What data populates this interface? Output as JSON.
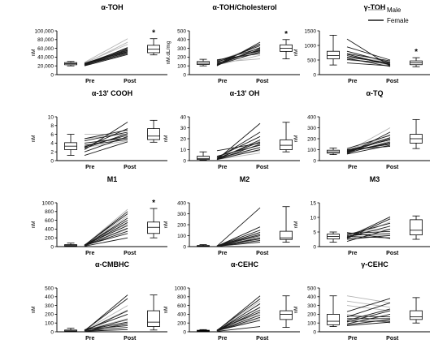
{
  "legend": {
    "entries": [
      {
        "label": "Male",
        "color": "#b5b5b5"
      },
      {
        "label": "Female",
        "color": "#1a1a1a"
      }
    ]
  },
  "colors": {
    "male": "#b5b5b5",
    "female": "#1a1a1a",
    "axis": "#000000"
  },
  "chart_data": [
    {
      "type": "box-and-line",
      "title": "α-TOH",
      "ylabel": "nM",
      "categories": [
        "Pre",
        "Post"
      ],
      "ylim": [
        0,
        100000
      ],
      "yticks": [
        "0",
        "20,000",
        "40,000",
        "60,000",
        "80,000",
        "100,000"
      ],
      "ytick_values": [
        0,
        20000,
        40000,
        60000,
        80000,
        100000
      ],
      "pre_box": {
        "whisker_low": 20000,
        "q1": 22500,
        "median": 25000,
        "q3": 27500,
        "whisker_high": 30000
      },
      "post_box": {
        "whisker_low": 45000,
        "q1": 50000,
        "median": 58000,
        "q3": 67000,
        "whisker_high": 82000
      },
      "significant": true,
      "significance_mark": "*",
      "lines": {
        "male": [
          [
            28000,
            82000
          ],
          [
            25000,
            74000
          ],
          [
            27000,
            69000
          ],
          [
            24000,
            55000
          ]
        ],
        "female": [
          [
            22000,
            62000
          ],
          [
            25000,
            60000
          ],
          [
            23000,
            58000
          ],
          [
            26000,
            55000
          ],
          [
            21000,
            52000
          ],
          [
            24000,
            50000
          ],
          [
            22000,
            48000
          ],
          [
            20000,
            46000
          ],
          [
            23000,
            56000
          ],
          [
            25000,
            53000
          ]
        ]
      }
    },
    {
      "type": "box-and-line",
      "title": "α-TOH/Cholesterol",
      "ylabel": "nM.dL/mg",
      "categories": [
        "Pre",
        "Post"
      ],
      "ylim": [
        0,
        500
      ],
      "yticks": [
        "0",
        "100",
        "200",
        "300",
        "400",
        "500"
      ],
      "ytick_values": [
        0,
        100,
        200,
        300,
        400,
        500
      ],
      "pre_box": {
        "whisker_low": 100,
        "q1": 115,
        "median": 130,
        "q3": 150,
        "whisker_high": 175
      },
      "post_box": {
        "whisker_low": 180,
        "q1": 265,
        "median": 300,
        "q3": 340,
        "whisker_high": 400
      },
      "significant": true,
      "significance_mark": "*",
      "lines": {
        "male": [
          [
            150,
            340
          ],
          [
            130,
            250
          ],
          [
            110,
            220
          ],
          [
            140,
            180
          ]
        ],
        "female": [
          [
            100,
            370
          ],
          [
            120,
            350
          ],
          [
            140,
            330
          ],
          [
            105,
            310
          ],
          [
            160,
            300
          ],
          [
            115,
            290
          ],
          [
            130,
            280
          ],
          [
            150,
            270
          ],
          [
            110,
            260
          ],
          [
            170,
            240
          ]
        ]
      }
    },
    {
      "type": "box-and-line",
      "title": "γ-TOH",
      "ylabel": "nM",
      "categories": [
        "Pre",
        "Post"
      ],
      "ylim": [
        0,
        1500
      ],
      "yticks": [
        "0",
        "500",
        "1000",
        "1500"
      ],
      "ytick_values": [
        0,
        500,
        1000,
        1500
      ],
      "pre_box": {
        "whisker_low": 330,
        "q1": 540,
        "median": 650,
        "q3": 800,
        "whisker_high": 1350
      },
      "post_box": {
        "whisker_low": 270,
        "q1": 340,
        "median": 400,
        "q3": 470,
        "whisker_high": 580
      },
      "significant": true,
      "significance_mark": "*",
      "lines": {
        "male": [
          [
            800,
            400
          ],
          [
            700,
            300
          ],
          [
            600,
            450
          ],
          [
            500,
            380
          ]
        ],
        "female": [
          [
            1220,
            300
          ],
          [
            950,
            500
          ],
          [
            800,
            420
          ],
          [
            720,
            470
          ],
          [
            650,
            350
          ],
          [
            600,
            400
          ],
          [
            560,
            280
          ],
          [
            700,
            330
          ],
          [
            520,
            380
          ],
          [
            400,
            300
          ]
        ]
      }
    },
    {
      "type": "box-and-line",
      "title": "α-13' COOH",
      "ylabel": "nM",
      "categories": [
        "Pre",
        "Post"
      ],
      "ylim": [
        0,
        10
      ],
      "yticks": [
        "0",
        "2",
        "4",
        "6",
        "8",
        "10"
      ],
      "ytick_values": [
        0,
        2,
        4,
        6,
        8,
        10
      ],
      "pre_box": {
        "whisker_low": 1.2,
        "q1": 2.5,
        "median": 3.3,
        "q3": 4.1,
        "whisker_high": 6.0
      },
      "post_box": {
        "whisker_low": 4.2,
        "q1": 4.8,
        "median": 5.6,
        "q3": 7.3,
        "whisker_high": 9.2
      },
      "significant": false,
      "significance_mark": "",
      "lines": {
        "male": [
          [
            6.0,
            6.0
          ],
          [
            4.0,
            5.0
          ],
          [
            3.0,
            4.5
          ],
          [
            5.0,
            6.0
          ]
        ],
        "female": [
          [
            2.5,
            8.8
          ],
          [
            3.0,
            7.3
          ],
          [
            4.5,
            6.5
          ],
          [
            3.2,
            5.8
          ],
          [
            2.0,
            5.5
          ],
          [
            4.0,
            5.2
          ],
          [
            3.5,
            4.8
          ],
          [
            1.2,
            4.3
          ],
          [
            2.8,
            6.2
          ],
          [
            5.0,
            7.0
          ]
        ]
      }
    },
    {
      "type": "box-and-line",
      "title": "α-13' OH",
      "ylabel": "nM",
      "categories": [
        "Pre",
        "Post"
      ],
      "ylim": [
        0,
        40
      ],
      "yticks": [
        "0",
        "10",
        "20",
        "30",
        "40"
      ],
      "ytick_values": [
        0,
        10,
        20,
        30,
        40
      ],
      "pre_box": {
        "whisker_low": 0.5,
        "q1": 1,
        "median": 2,
        "q3": 4,
        "whisker_high": 8
      },
      "post_box": {
        "whisker_low": 8,
        "q1": 10,
        "median": 14,
        "q3": 19,
        "whisker_high": 35
      },
      "significant": false,
      "significance_mark": "",
      "lines": {
        "male": [
          [
            2,
            18
          ],
          [
            1,
            12
          ],
          [
            3,
            9
          ],
          [
            1,
            7
          ]
        ],
        "female": [
          [
            1,
            34
          ],
          [
            2,
            26
          ],
          [
            3,
            22
          ],
          [
            1,
            19
          ],
          [
            2,
            17
          ],
          [
            1,
            15
          ],
          [
            4,
            14
          ],
          [
            9,
            16
          ],
          [
            2,
            12
          ],
          [
            1,
            10
          ]
        ]
      }
    },
    {
      "type": "box-and-line",
      "title": "α-TQ",
      "ylabel": "nM",
      "categories": [
        "Pre",
        "Post"
      ],
      "ylim": [
        0,
        400
      ],
      "yticks": [
        "0",
        "100",
        "200",
        "300",
        "400"
      ],
      "ytick_values": [
        0,
        100,
        200,
        300,
        400
      ],
      "pre_box": {
        "whisker_low": 55,
        "q1": 68,
        "median": 80,
        "q3": 95,
        "whisker_high": 115
      },
      "post_box": {
        "whisker_low": 110,
        "q1": 160,
        "median": 200,
        "q3": 240,
        "whisker_high": 375
      },
      "significant": false,
      "significance_mark": "",
      "lines": {
        "male": [
          [
            80,
            300
          ],
          [
            70,
            240
          ],
          [
            100,
            210
          ],
          [
            65,
            180
          ]
        ],
        "female": [
          [
            60,
            260
          ],
          [
            110,
            230
          ],
          [
            80,
            210
          ],
          [
            75,
            200
          ],
          [
            95,
            190
          ],
          [
            70,
            170
          ],
          [
            85,
            160
          ],
          [
            90,
            150
          ],
          [
            60,
            140
          ],
          [
            100,
            130
          ]
        ]
      }
    },
    {
      "type": "box-and-line",
      "title": "M1",
      "ylabel": "nM",
      "categories": [
        "Pre",
        "Post"
      ],
      "ylim": [
        0,
        1000
      ],
      "yticks": [
        "0",
        "200",
        "400",
        "600",
        "800",
        "1000"
      ],
      "ytick_values": [
        0,
        200,
        400,
        600,
        800,
        1000
      ],
      "pre_box": {
        "whisker_low": 5,
        "q1": 15,
        "median": 25,
        "q3": 45,
        "whisker_high": 80
      },
      "post_box": {
        "whisker_low": 200,
        "q1": 300,
        "median": 440,
        "q3": 560,
        "whisker_high": 870
      },
      "significant": true,
      "significance_mark": "*",
      "lines": {
        "male": [
          [
            30,
            850
          ],
          [
            20,
            700
          ],
          [
            40,
            520
          ],
          [
            15,
            400
          ]
        ],
        "female": [
          [
            25,
            800
          ],
          [
            35,
            750
          ],
          [
            20,
            650
          ],
          [
            30,
            600
          ],
          [
            15,
            550
          ],
          [
            40,
            480
          ],
          [
            25,
            420
          ],
          [
            20,
            350
          ],
          [
            30,
            300
          ],
          [
            10,
            200
          ]
        ]
      }
    },
    {
      "type": "box-and-line",
      "title": "M2",
      "ylabel": "nM",
      "categories": [
        "Pre",
        "Post"
      ],
      "ylim": [
        0,
        400
      ],
      "yticks": [
        "0",
        "100",
        "200",
        "300",
        "400"
      ],
      "ytick_values": [
        0,
        100,
        200,
        300,
        400
      ],
      "pre_box": {
        "whisker_low": 0,
        "q1": 3,
        "median": 6,
        "q3": 10,
        "whisker_high": 18
      },
      "post_box": {
        "whisker_low": 40,
        "q1": 65,
        "median": 80,
        "q3": 140,
        "whisker_high": 365
      },
      "significant": false,
      "significance_mark": "",
      "lines": {
        "male": [
          [
            5,
            150
          ],
          [
            3,
            120
          ],
          [
            8,
            90
          ],
          [
            2,
            60
          ]
        ],
        "female": [
          [
            5,
            355
          ],
          [
            4,
            180
          ],
          [
            6,
            150
          ],
          [
            3,
            130
          ],
          [
            8,
            110
          ],
          [
            5,
            100
          ],
          [
            2,
            80
          ],
          [
            7,
            70
          ],
          [
            4,
            55
          ],
          [
            3,
            40
          ]
        ]
      }
    },
    {
      "type": "box-and-line",
      "title": "M3",
      "ylabel": "nM",
      "categories": [
        "Pre",
        "Post"
      ],
      "ylim": [
        0,
        15
      ],
      "yticks": [
        "0",
        "5",
        "10",
        "15"
      ],
      "ytick_values": [
        0,
        5,
        10,
        15
      ],
      "pre_box": {
        "whisker_low": 1.5,
        "q1": 2.6,
        "median": 3.5,
        "q3": 4.3,
        "whisker_high": 5.0
      },
      "post_box": {
        "whisker_low": 2.5,
        "q1": 4.0,
        "median": 5.6,
        "q3": 9.2,
        "whisker_high": 10.5
      },
      "significant": false,
      "significance_mark": "",
      "lines": {
        "male": [
          [
            3.5,
            10.0
          ],
          [
            2.5,
            8.5
          ],
          [
            4.5,
            6.0
          ],
          [
            3.0,
            4.0
          ]
        ],
        "female": [
          [
            3.0,
            10.2
          ],
          [
            2.8,
            9.5
          ],
          [
            4.0,
            8.0
          ],
          [
            3.2,
            7.0
          ],
          [
            1.8,
            6.0
          ],
          [
            4.5,
            5.2
          ],
          [
            3.8,
            4.5
          ],
          [
            2.5,
            3.8
          ],
          [
            3.5,
            3.0
          ],
          [
            4.8,
            2.8
          ]
        ]
      }
    },
    {
      "type": "box-and-line",
      "title": "α-CMBHC",
      "ylabel": "nM",
      "categories": [
        "Pre",
        "Post"
      ],
      "ylim": [
        0,
        500
      ],
      "yticks": [
        "0",
        "100",
        "200",
        "300",
        "400",
        "500"
      ],
      "ytick_values": [
        0,
        100,
        200,
        300,
        400,
        500
      ],
      "pre_box": {
        "whisker_low": 0,
        "q1": 5,
        "median": 10,
        "q3": 20,
        "whisker_high": 40
      },
      "post_box": {
        "whisker_low": 20,
        "q1": 60,
        "median": 110,
        "q3": 240,
        "whisker_high": 420
      },
      "significant": false,
      "significance_mark": "",
      "lines": {
        "male": [
          [
            15,
            300
          ],
          [
            10,
            250
          ],
          [
            20,
            150
          ],
          [
            5,
            100
          ]
        ],
        "female": [
          [
            10,
            420
          ],
          [
            15,
            380
          ],
          [
            8,
            240
          ],
          [
            20,
            200
          ],
          [
            12,
            140
          ],
          [
            18,
            110
          ],
          [
            5,
            90
          ],
          [
            25,
            70
          ],
          [
            10,
            50
          ],
          [
            7,
            25
          ]
        ]
      }
    },
    {
      "type": "box-and-line",
      "title": "α-CEHC",
      "ylabel": "nM",
      "categories": [
        "Pre",
        "Post"
      ],
      "ylim": [
        0,
        1000
      ],
      "yticks": [
        "0",
        "200",
        "400",
        "600",
        "800",
        "1000"
      ],
      "ytick_values": [
        0,
        200,
        400,
        600,
        800,
        1000
      ],
      "pre_box": {
        "whisker_low": 5,
        "q1": 15,
        "median": 25,
        "q3": 35,
        "whisker_high": 50
      },
      "post_box": {
        "whisker_low": 100,
        "q1": 280,
        "median": 400,
        "q3": 480,
        "whisker_high": 820
      },
      "significant": false,
      "significance_mark": "",
      "lines": {
        "male": [
          [
            30,
            700
          ],
          [
            20,
            550
          ],
          [
            40,
            420
          ],
          [
            10,
            300
          ]
        ],
        "female": [
          [
            25,
            820
          ],
          [
            35,
            750
          ],
          [
            20,
            640
          ],
          [
            30,
            560
          ],
          [
            15,
            500
          ],
          [
            40,
            450
          ],
          [
            25,
            380
          ],
          [
            20,
            330
          ],
          [
            30,
            260
          ],
          [
            10,
            120
          ]
        ]
      }
    },
    {
      "type": "box-and-line",
      "title": "γ-CEHC",
      "ylabel": "nM",
      "categories": [
        "Pre",
        "Post"
      ],
      "ylim": [
        0,
        500
      ],
      "yticks": [
        "0",
        "100",
        "200",
        "300",
        "400",
        "500"
      ],
      "ytick_values": [
        0,
        100,
        200,
        300,
        400,
        500
      ],
      "pre_box": {
        "whisker_low": 60,
        "q1": 80,
        "median": 120,
        "q3": 200,
        "whisker_high": 410
      },
      "post_box": {
        "whisker_low": 100,
        "q1": 140,
        "median": 170,
        "q3": 240,
        "whisker_high": 390
      },
      "significant": false,
      "significance_mark": "",
      "lines": {
        "male": [
          [
            410,
            330
          ],
          [
            350,
            280
          ],
          [
            300,
            240
          ],
          [
            200,
            100
          ]
        ],
        "female": [
          [
            230,
            380
          ],
          [
            170,
            330
          ],
          [
            130,
            260
          ],
          [
            110,
            240
          ],
          [
            90,
            200
          ],
          [
            180,
            170
          ],
          [
            150,
            150
          ],
          [
            80,
            140
          ],
          [
            120,
            120
          ],
          [
            70,
            110
          ]
        ]
      }
    }
  ]
}
